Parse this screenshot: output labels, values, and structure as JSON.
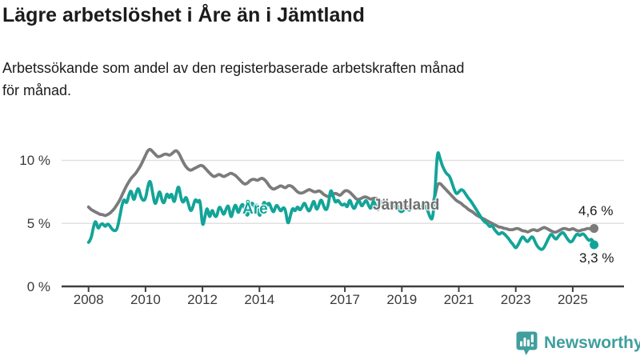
{
  "header": {
    "title": "Lägre arbetslöshet i Åre än i Jämtland",
    "subtitle_line1": "Arbetssökande som andel av den registerbaserade arbetskraften månad",
    "subtitle_line2": "för månad."
  },
  "colors": {
    "are": "#13a498",
    "jamtland": "#7b7b7b",
    "axis": "#3f3f3f",
    "grid": "#e1e1e1",
    "tick_text": "#3a3a3a",
    "logo": "#419e9e"
  },
  "annotations": {
    "are_label": "Åre",
    "jamtland_label": "Jämtland",
    "jamtland_end_value": "4,6 %",
    "are_end_value": "3,3 %"
  },
  "logo": {
    "text": "Newsworthy"
  },
  "chart_data": {
    "type": "line",
    "title": "Lägre arbetslöshet i Åre än i Jämtland",
    "subtitle": "Arbetssökande som andel av den registerbaserade arbetskraften månad för månad.",
    "frequency": "monthly",
    "x_start_year": 2008,
    "x_end": "2025-10",
    "x_tick_years": [
      2008,
      2010,
      2012,
      2014,
      2017,
      2019,
      2021,
      2023,
      2025
    ],
    "x_tick_labels": [
      "2008",
      "2010",
      "2012",
      "2014",
      "2017",
      "2019",
      "2021",
      "2023",
      "2025"
    ],
    "y_ticks": [
      {
        "value": 0,
        "label": "0 %"
      },
      {
        "value": 5,
        "label": "5 %"
      },
      {
        "value": 10,
        "label": "10 %"
      }
    ],
    "ylim": [
      0,
      11.5
    ],
    "grid": "horizontal",
    "legend_position": "inline-labels",
    "series": [
      {
        "name": "Jämtland",
        "color": "#7b7b7b",
        "end_label": "4,6 %",
        "values": [
          6.3,
          6.1,
          6.0,
          5.9,
          5.8,
          5.7,
          5.7,
          5.6,
          5.7,
          5.8,
          6.0,
          6.2,
          6.5,
          6.8,
          7.2,
          7.6,
          8.0,
          8.3,
          8.6,
          8.8,
          9.0,
          9.3,
          9.6,
          10.0,
          10.4,
          10.8,
          10.9,
          10.7,
          10.5,
          10.3,
          10.3,
          10.4,
          10.5,
          10.5,
          10.4,
          10.5,
          10.7,
          10.8,
          10.6,
          10.2,
          9.8,
          9.5,
          9.3,
          9.2,
          9.3,
          9.4,
          9.5,
          9.6,
          9.6,
          9.4,
          9.2,
          9.0,
          8.8,
          8.7,
          8.8,
          8.9,
          8.8,
          8.7,
          8.8,
          8.9,
          9.0,
          8.9,
          8.8,
          8.6,
          8.4,
          8.2,
          8.1,
          8.2,
          8.4,
          8.5,
          8.5,
          8.4,
          8.5,
          8.6,
          8.5,
          8.3,
          8.0,
          7.8,
          7.7,
          7.8,
          7.9,
          8.0,
          7.9,
          7.8,
          8.0,
          8.0,
          7.9,
          7.7,
          7.5,
          7.4,
          7.4,
          7.5,
          7.6,
          7.7,
          7.6,
          7.5,
          7.5,
          7.6,
          7.5,
          7.3,
          7.2,
          7.1,
          7.2,
          7.3,
          7.4,
          7.3,
          7.2,
          7.4,
          7.6,
          7.6,
          7.5,
          7.3,
          7.1,
          6.9,
          6.9,
          7.0,
          7.1,
          7.1,
          7.0,
          6.9,
          7.0,
          7.0,
          6.9,
          6.7,
          6.6,
          6.5,
          6.6,
          6.6,
          6.5,
          6.4,
          6.4,
          6.4,
          6.5,
          6.4,
          6.3,
          6.3,
          6.2,
          6.2,
          6.3,
          6.3,
          6.2,
          6.2,
          6.3,
          6.4,
          6.6,
          6.6,
          7.2,
          8.1,
          8.2,
          8.0,
          7.8,
          7.6,
          7.4,
          7.2,
          7.0,
          6.8,
          6.7,
          6.6,
          6.4,
          6.3,
          6.1,
          6.0,
          5.9,
          5.7,
          5.6,
          5.5,
          5.4,
          5.3,
          5.2,
          5.1,
          5.0,
          4.9,
          4.8,
          4.7,
          4.7,
          4.6,
          4.6,
          4.5,
          4.5,
          4.5,
          4.6,
          4.6,
          4.5,
          4.4,
          4.4,
          4.3,
          4.4,
          4.5,
          4.5,
          4.4,
          4.5,
          4.6,
          4.7,
          4.6,
          4.5,
          4.4,
          4.3,
          4.3,
          4.4,
          4.5,
          4.6,
          4.6,
          4.5,
          4.5,
          4.6,
          4.5,
          4.4,
          4.4,
          4.5,
          4.5,
          4.6,
          4.6,
          4.5,
          4.6
        ]
      },
      {
        "name": "Åre",
        "color": "#13a498",
        "end_label": "3,3 %",
        "values": [
          3.5,
          3.7,
          4.7,
          5.3,
          4.5,
          4.9,
          5.0,
          4.7,
          5.0,
          4.8,
          4.5,
          4.4,
          4.5,
          5.4,
          6.4,
          7.0,
          6.5,
          7.3,
          7.7,
          6.7,
          7.4,
          7.9,
          7.1,
          6.8,
          6.9,
          8.0,
          8.5,
          7.4,
          6.4,
          7.0,
          7.7,
          6.7,
          6.6,
          7.5,
          6.9,
          7.5,
          6.5,
          7.4,
          8.1,
          6.9,
          6.6,
          7.2,
          6.6,
          5.9,
          6.3,
          7.0,
          6.6,
          7.0,
          4.6,
          5.5,
          6.4,
          5.3,
          6.2,
          5.6,
          5.5,
          6.4,
          6.1,
          5.6,
          6.2,
          6.5,
          5.3,
          6.1,
          6.6,
          5.7,
          6.3,
          6.6,
          6.0,
          5.5,
          6.4,
          6.7,
          6.2,
          6.6,
          5.4,
          6.2,
          6.8,
          6.3,
          6.7,
          6.2,
          5.8,
          6.5,
          6.3,
          5.9,
          6.3,
          6.1,
          4.8,
          5.6,
          6.3,
          5.9,
          6.4,
          6.0,
          6.3,
          6.7,
          6.2,
          5.9,
          6.4,
          6.9,
          6.0,
          6.4,
          7.0,
          6.4,
          6.0,
          6.4,
          7.8,
          7.2,
          6.6,
          6.9,
          6.6,
          6.4,
          6.6,
          6.2,
          7.0,
          6.4,
          6.1,
          6.6,
          6.9,
          6.3,
          6.6,
          6.9,
          6.4,
          6.1,
          6.9,
          6.4,
          6.0,
          6.5,
          6.8,
          6.3,
          6.6,
          6.4,
          6.2,
          6.5,
          6.3,
          6.0,
          5.9,
          6.1,
          6.3,
          6.0,
          6.2,
          6.4,
          6.3,
          6.1,
          6.3,
          6.5,
          6.4,
          6.0,
          5.4,
          5.3,
          7.5,
          10.9,
          10.2,
          9.6,
          9.2,
          8.9,
          8.8,
          8.3,
          7.7,
          7.3,
          7.5,
          7.7,
          7.6,
          7.3,
          7.0,
          6.8,
          6.5,
          6.2,
          5.9,
          5.6,
          5.3,
          5.1,
          5.0,
          4.7,
          4.9,
          4.5,
          4.3,
          4.1,
          4.3,
          4.2,
          4.0,
          3.8,
          3.5,
          3.3,
          3.0,
          3.3,
          3.7,
          4.0,
          3.7,
          3.5,
          3.8,
          4.0,
          3.6,
          3.2,
          3.0,
          2.9,
          3.1,
          3.5,
          3.9,
          4.2,
          3.9,
          3.7,
          4.0,
          4.2,
          4.3,
          4.0,
          3.7,
          3.5,
          3.6,
          4.0,
          4.2,
          4.0,
          4.2,
          4.1,
          3.8,
          3.6,
          3.8,
          3.3
        ]
      }
    ]
  }
}
